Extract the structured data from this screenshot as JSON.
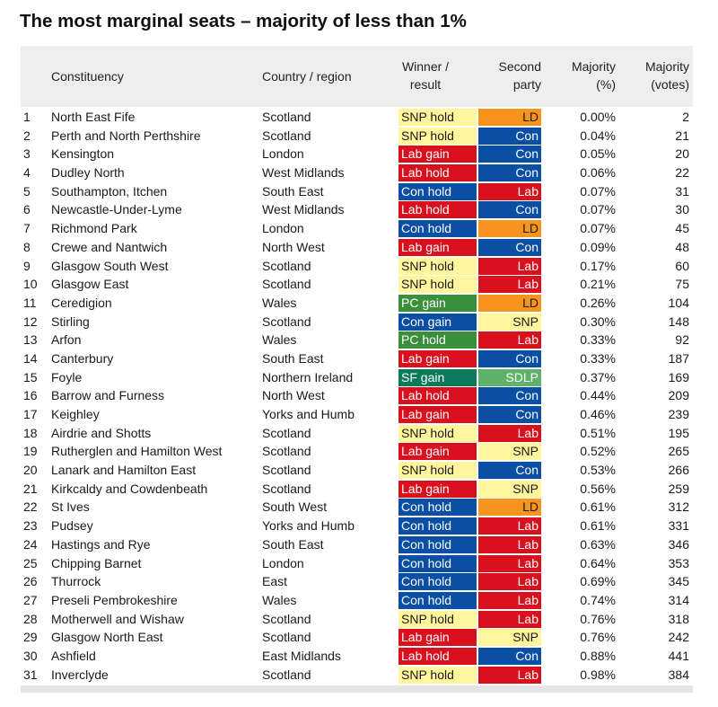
{
  "title": "The most marginal seats – majority of less than 1%",
  "headers": {
    "constituency": "Constituency",
    "country": "Country / region",
    "winner_l1": "Winner /",
    "winner_l2": "result",
    "second_l1": "Second",
    "second_l2": "party",
    "majpct_l1": "Majority",
    "majpct_l2": "(%)",
    "majvotes_l1": "Majority",
    "majvotes_l2": "(votes)"
  },
  "party_colors": {
    "SNP": {
      "bg": "#fff59d",
      "fg": "#1a1a1a"
    },
    "Lab": {
      "bg": "#d9101e",
      "fg": "#ffffff"
    },
    "Con": {
      "bg": "#0a4fa3",
      "fg": "#ffffff"
    },
    "LD": {
      "bg": "#f7941d",
      "fg": "#1a1a1a"
    },
    "PC": {
      "bg": "#3a8f3a",
      "fg": "#ffffff"
    },
    "SF": {
      "bg": "#0b7a5a",
      "fg": "#ffffff"
    },
    "SDLP": {
      "bg": "#5fb26b",
      "fg": "#ffffff"
    }
  },
  "rows": [
    {
      "n": "1",
      "c": "North East Fife",
      "r": "Scotland",
      "w": "SNP hold",
      "wp": "SNP",
      "s": "LD",
      "pct": "0.00%",
      "v": "2"
    },
    {
      "n": "2",
      "c": "Perth and North Perthshire",
      "r": "Scotland",
      "w": "SNP hold",
      "wp": "SNP",
      "s": "Con",
      "pct": "0.04%",
      "v": "21"
    },
    {
      "n": "3",
      "c": "Kensington",
      "r": "London",
      "w": "Lab gain",
      "wp": "Lab",
      "s": "Con",
      "pct": "0.05%",
      "v": "20"
    },
    {
      "n": "4",
      "c": "Dudley North",
      "r": "West Midlands",
      "w": "Lab hold",
      "wp": "Lab",
      "s": "Con",
      "pct": "0.06%",
      "v": "22"
    },
    {
      "n": "5",
      "c": "Southampton, Itchen",
      "r": "South East",
      "w": "Con hold",
      "wp": "Con",
      "s": "Lab",
      "pct": "0.07%",
      "v": "31"
    },
    {
      "n": "6",
      "c": "Newcastle-Under-Lyme",
      "r": "West Midlands",
      "w": "Lab hold",
      "wp": "Lab",
      "s": "Con",
      "pct": "0.07%",
      "v": "30"
    },
    {
      "n": "7",
      "c": "Richmond Park",
      "r": "London",
      "w": "Con hold",
      "wp": "Con",
      "s": "LD",
      "pct": "0.07%",
      "v": "45"
    },
    {
      "n": "8",
      "c": "Crewe and Nantwich",
      "r": "North West",
      "w": "Lab gain",
      "wp": "Lab",
      "s": "Con",
      "pct": "0.09%",
      "v": "48"
    },
    {
      "n": "9",
      "c": "Glasgow South West",
      "r": "Scotland",
      "w": "SNP hold",
      "wp": "SNP",
      "s": "Lab",
      "pct": "0.17%",
      "v": "60"
    },
    {
      "n": "10",
      "c": "Glasgow East",
      "r": "Scotland",
      "w": "SNP hold",
      "wp": "SNP",
      "s": "Lab",
      "pct": "0.21%",
      "v": "75"
    },
    {
      "n": "11",
      "c": "Ceredigion",
      "r": "Wales",
      "w": "PC gain",
      "wp": "PC",
      "s": "LD",
      "pct": "0.26%",
      "v": "104"
    },
    {
      "n": "12",
      "c": "Stirling",
      "r": "Scotland",
      "w": "Con gain",
      "wp": "Con",
      "s": "SNP",
      "pct": "0.30%",
      "v": "148"
    },
    {
      "n": "13",
      "c": "Arfon",
      "r": "Wales",
      "w": "PC hold",
      "wp": "PC",
      "s": "Lab",
      "pct": "0.33%",
      "v": "92"
    },
    {
      "n": "14",
      "c": "Canterbury",
      "r": "South East",
      "w": "Lab gain",
      "wp": "Lab",
      "s": "Con",
      "pct": "0.33%",
      "v": "187"
    },
    {
      "n": "15",
      "c": "Foyle",
      "r": "Northern Ireland",
      "w": "SF gain",
      "wp": "SF",
      "s": "SDLP",
      "pct": "0.37%",
      "v": "169"
    },
    {
      "n": "16",
      "c": "Barrow and Furness",
      "r": "North West",
      "w": "Lab hold",
      "wp": "Lab",
      "s": "Con",
      "pct": "0.44%",
      "v": "209"
    },
    {
      "n": "17",
      "c": "Keighley",
      "r": "Yorks and Humb",
      "w": "Lab gain",
      "wp": "Lab",
      "s": "Con",
      "pct": "0.46%",
      "v": "239"
    },
    {
      "n": "18",
      "c": "Airdrie and Shotts",
      "r": "Scotland",
      "w": "SNP hold",
      "wp": "SNP",
      "s": "Lab",
      "pct": "0.51%",
      "v": "195"
    },
    {
      "n": "19",
      "c": "Rutherglen and Hamilton West",
      "r": "Scotland",
      "w": "Lab gain",
      "wp": "Lab",
      "s": "SNP",
      "pct": "0.52%",
      "v": "265"
    },
    {
      "n": "20",
      "c": "Lanark and Hamilton East",
      "r": "Scotland",
      "w": "SNP hold",
      "wp": "SNP",
      "s": "Con",
      "pct": "0.53%",
      "v": "266"
    },
    {
      "n": "21",
      "c": "Kirkcaldy and Cowdenbeath",
      "r": "Scotland",
      "w": "Lab gain",
      "wp": "Lab",
      "s": "SNP",
      "pct": "0.56%",
      "v": "259"
    },
    {
      "n": "22",
      "c": "St Ives",
      "r": "South West",
      "w": "Con hold",
      "wp": "Con",
      "s": "LD",
      "pct": "0.61%",
      "v": "312"
    },
    {
      "n": "23",
      "c": "Pudsey",
      "r": "Yorks and Humb",
      "w": "Con hold",
      "wp": "Con",
      "s": "Lab",
      "pct": "0.61%",
      "v": "331"
    },
    {
      "n": "24",
      "c": "Hastings and Rye",
      "r": "South East",
      "w": "Con hold",
      "wp": "Con",
      "s": "Lab",
      "pct": "0.63%",
      "v": "346"
    },
    {
      "n": "25",
      "c": "Chipping Barnet",
      "r": "London",
      "w": "Con hold",
      "wp": "Con",
      "s": "Lab",
      "pct": "0.64%",
      "v": "353"
    },
    {
      "n": "26",
      "c": "Thurrock",
      "r": "East",
      "w": "Con hold",
      "wp": "Con",
      "s": "Lab",
      "pct": "0.69%",
      "v": "345"
    },
    {
      "n": "27",
      "c": "Preseli Pembrokeshire",
      "r": "Wales",
      "w": "Con hold",
      "wp": "Con",
      "s": "Lab",
      "pct": "0.74%",
      "v": "314"
    },
    {
      "n": "28",
      "c": "Motherwell and Wishaw",
      "r": "Scotland",
      "w": "SNP hold",
      "wp": "SNP",
      "s": "Lab",
      "pct": "0.76%",
      "v": "318"
    },
    {
      "n": "29",
      "c": "Glasgow North East",
      "r": "Scotland",
      "w": "Lab gain",
      "wp": "Lab",
      "s": "SNP",
      "pct": "0.76%",
      "v": "242"
    },
    {
      "n": "30",
      "c": "Ashfield",
      "r": "East Midlands",
      "w": "Lab hold",
      "wp": "Lab",
      "s": "Con",
      "pct": "0.88%",
      "v": "441"
    },
    {
      "n": "31",
      "c": "Inverclyde",
      "r": "Scotland",
      "w": "SNP hold",
      "wp": "SNP",
      "s": "Lab",
      "pct": "0.98%",
      "v": "384"
    }
  ]
}
